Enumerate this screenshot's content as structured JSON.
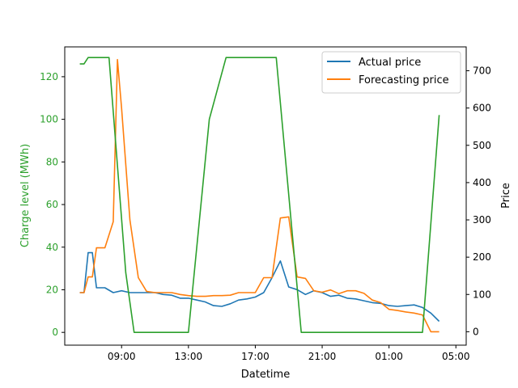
{
  "chart_data": {
    "type": "line",
    "title": "",
    "xlabel": "Datetime",
    "ylabel_left": "Charge level (MWh)",
    "ylabel_right": "Price",
    "x_tick_labels": [
      "09:00",
      "13:00",
      "17:00",
      "21:00",
      "01:00",
      "05:00"
    ],
    "left_axis": {
      "ylim": [
        -6,
        134
      ],
      "ticks": [
        "0",
        "20",
        "40",
        "60",
        "80",
        "100",
        "120"
      ],
      "color": "#2ca02c"
    },
    "right_axis": {
      "ylim": [
        -36,
        764
      ],
      "ticks": [
        "0",
        "100",
        "200",
        "300",
        "400",
        "500",
        "600",
        "700"
      ],
      "color": "#000000"
    },
    "legend_position": "top-right",
    "series": [
      {
        "name": "Actual price",
        "axis": "right",
        "color": "#1f77b4",
        "x": [
          "06:30",
          "06:45",
          "07:00",
          "07:15",
          "07:30",
          "08:00",
          "08:30",
          "09:00",
          "09:30",
          "10:00",
          "10:30",
          "11:00",
          "11:30",
          "12:00",
          "12:30",
          "13:00",
          "13:30",
          "14:00",
          "14:30",
          "15:00",
          "15:30",
          "16:00",
          "16:30",
          "17:00",
          "17:30",
          "18:00",
          "18:30",
          "19:00",
          "19:30",
          "20:00",
          "20:30",
          "21:00",
          "21:30",
          "22:00",
          "22:30",
          "23:00",
          "23:30",
          "00:00",
          "00:30",
          "01:00",
          "01:30",
          "02:00",
          "02:30",
          "03:00",
          "03:30",
          "04:00"
        ],
        "values": [
          105,
          105,
          212,
          212,
          118,
          118,
          105,
          110,
          105,
          105,
          105,
          105,
          100,
          98,
          90,
          90,
          85,
          80,
          70,
          68,
          75,
          85,
          88,
          93,
          105,
          145,
          190,
          120,
          113,
          100,
          110,
          105,
          95,
          98,
          90,
          88,
          83,
          78,
          76,
          70,
          68,
          70,
          72,
          65,
          50,
          28
        ]
      },
      {
        "name": "Forecasting price",
        "axis": "right",
        "color": "#ff7f0e",
        "x": [
          "06:30",
          "06:45",
          "07:00",
          "07:15",
          "07:30",
          "08:00",
          "08:30",
          "08:45",
          "09:00",
          "09:30",
          "10:00",
          "10:30",
          "11:00",
          "11:30",
          "12:00",
          "12:30",
          "13:00",
          "13:30",
          "14:00",
          "14:30",
          "15:00",
          "15:30",
          "16:00",
          "16:30",
          "17:00",
          "17:30",
          "18:00",
          "18:30",
          "19:00",
          "19:30",
          "20:00",
          "20:30",
          "21:00",
          "21:30",
          "22:00",
          "22:30",
          "23:00",
          "23:30",
          "00:00",
          "00:30",
          "01:00",
          "01:30",
          "02:00",
          "02:30",
          "03:00",
          "03:30",
          "04:00"
        ],
        "values": [
          105,
          105,
          147,
          147,
          225,
          225,
          295,
          730,
          600,
          300,
          145,
          108,
          105,
          105,
          105,
          100,
          97,
          95,
          95,
          97,
          97,
          98,
          105,
          105,
          105,
          145,
          145,
          305,
          308,
          147,
          143,
          110,
          106,
          112,
          102,
          110,
          110,
          103,
          85,
          78,
          60,
          57,
          53,
          50,
          45,
          0,
          0
        ]
      },
      {
        "name": "",
        "axis": "left",
        "color": "#2ca02c",
        "x": [
          "06:30",
          "06:45",
          "07:00",
          "08:15",
          "09:15",
          "09:45",
          "13:00",
          "14:15",
          "15:15",
          "18:15",
          "19:45",
          "03:00",
          "04:00"
        ],
        "values": [
          126,
          126,
          129,
          129,
          28,
          0,
          0,
          100,
          129,
          129,
          0,
          0,
          102
        ]
      }
    ]
  }
}
